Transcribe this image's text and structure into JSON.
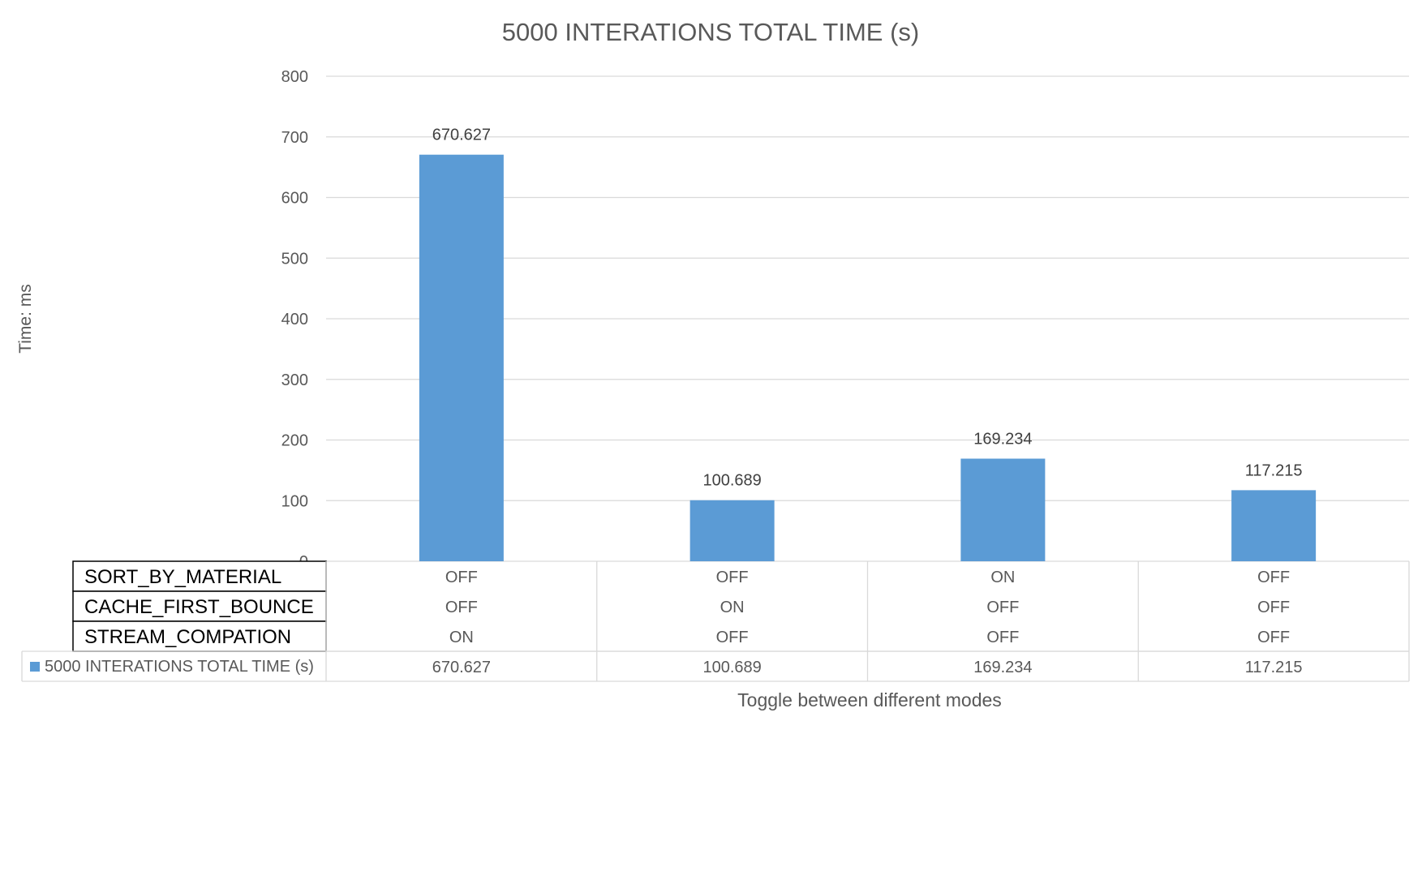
{
  "chart_data": {
    "type": "bar",
    "title": "5000 INTERATIONS TOTAL TIME (s)",
    "xlabel": "Toggle between different modes",
    "ylabel": "Time: ms",
    "ylim": [
      0,
      800
    ],
    "yticks": [
      0,
      100,
      200,
      300,
      400,
      500,
      600,
      700,
      800
    ],
    "grid": true,
    "legend": "in data table",
    "categories": [
      "",
      "",
      "",
      ""
    ],
    "series": [
      {
        "name": "5000 INTERATIONS TOTAL TIME (s)",
        "values": [
          670.627,
          100.689,
          169.234,
          117.215
        ],
        "value_labels": [
          "670.627",
          "100.689",
          "169.234",
          "117.215"
        ],
        "color": "#5B9BD5"
      }
    ],
    "category_table": [
      {
        "label": "SORT_BY_MATERIAL",
        "values": [
          "OFF",
          "OFF",
          "ON",
          "OFF"
        ]
      },
      {
        "label": "CACHE_FIRST_BOUNCE",
        "values": [
          "OFF",
          "ON",
          "OFF",
          "OFF"
        ]
      },
      {
        "label": "STREAM_COMPATION",
        "values": [
          "ON",
          "OFF",
          "OFF",
          "OFF"
        ]
      }
    ],
    "colors": {
      "bar": "#5B9BD5",
      "grid": "#D9D9D9",
      "text": "#595959",
      "dark_text": "#404040"
    }
  }
}
